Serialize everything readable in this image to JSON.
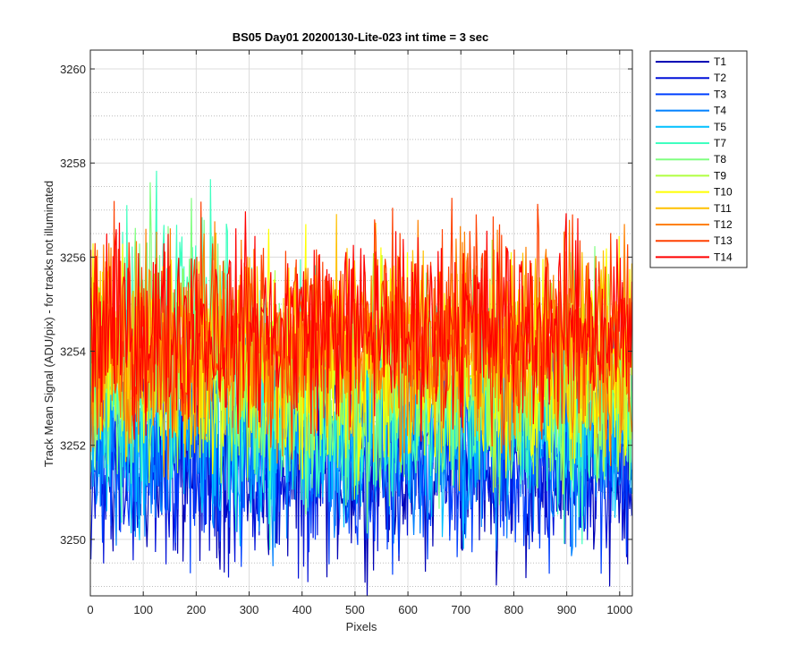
{
  "chart_data": {
    "type": "line",
    "title": "BS05 Day01 20200130-Lite-023 int time = 3 sec",
    "xlabel": "Pixels",
    "ylabel": "Track Mean Signal (ADU/pix) - for tracks not illuminated",
    "xlim": [
      0,
      1024
    ],
    "ylim": [
      3248.8,
      3260.4
    ],
    "xticks": [
      0,
      100,
      200,
      300,
      400,
      500,
      600,
      700,
      800,
      900,
      1000
    ],
    "yticks": [
      3250,
      3252,
      3254,
      3256,
      3258,
      3260
    ],
    "grid": true,
    "minor_grid_y": true,
    "legend_position": "outside-top-right",
    "series": [
      {
        "name": "T1",
        "color": "#0000B4",
        "mean": 3251.6,
        "spread": 1.0
      },
      {
        "name": "T2",
        "color": "#0010D8",
        "mean": 3251.6,
        "spread": 1.0
      },
      {
        "name": "T3",
        "color": "#0040FF",
        "mean": 3251.8,
        "spread": 1.0
      },
      {
        "name": "T4",
        "color": "#0080FF",
        "mean": 3252.2,
        "spread": 1.1
      },
      {
        "name": "T5",
        "color": "#00C0FF",
        "mean": 3252.5,
        "spread": 1.1
      },
      {
        "name": "T7",
        "color": "#40FFC0",
        "mean": 3253.0,
        "spread": 1.2
      },
      {
        "name": "T8",
        "color": "#80FF80",
        "mean": 3253.2,
        "spread": 1.1
      },
      {
        "name": "T9",
        "color": "#B0FF40",
        "mean": 3253.5,
        "spread": 1.1
      },
      {
        "name": "T10",
        "color": "#FFFF00",
        "mean": 3253.8,
        "spread": 1.1
      },
      {
        "name": "T11",
        "color": "#FFC000",
        "mean": 3254.0,
        "spread": 1.1
      },
      {
        "name": "T12",
        "color": "#FF8000",
        "mean": 3254.2,
        "spread": 1.1
      },
      {
        "name": "T13",
        "color": "#FF4000",
        "mean": 3254.4,
        "spread": 1.1
      },
      {
        "name": "T14",
        "color": "#FF0000",
        "mean": 3254.5,
        "spread": 1.0
      }
    ]
  }
}
